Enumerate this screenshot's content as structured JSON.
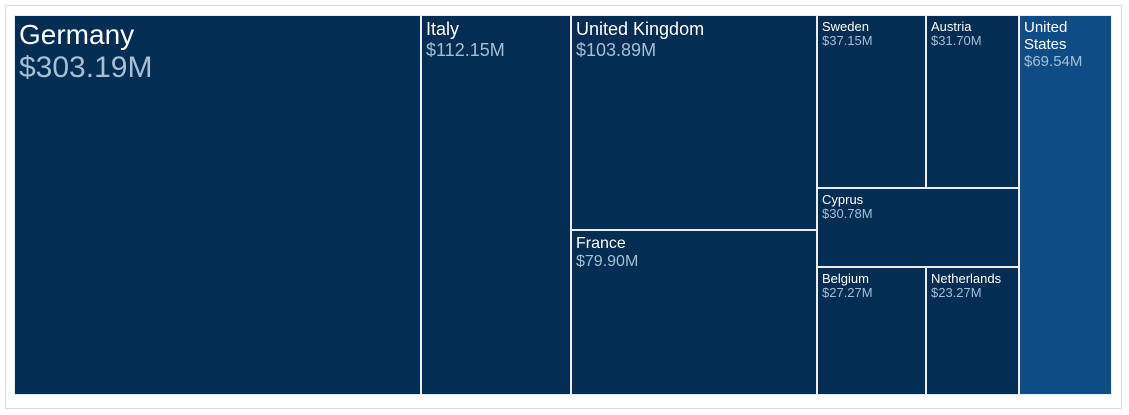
{
  "chart_data": {
    "type": "treemap",
    "title": "",
    "colors": {
      "default": "#032d52",
      "highlight": "#0f4c85",
      "border": "#e8eef4",
      "value_text": "#a6bfd6",
      "label_text": "#ffffff"
    },
    "items": [
      {
        "name": "Germany",
        "value": 303.19,
        "value_label": "$303.19M",
        "color": "#032d52"
      },
      {
        "name": "Italy",
        "value": 112.15,
        "value_label": "$112.15M",
        "color": "#032d52"
      },
      {
        "name": "United Kingdom",
        "value": 103.89,
        "value_label": "$103.89M",
        "color": "#032d52"
      },
      {
        "name": "France",
        "value": 79.9,
        "value_label": "$79.90M",
        "color": "#032d52"
      },
      {
        "name": "Sweden",
        "value": 37.15,
        "value_label": "$37.15M",
        "color": "#032d52"
      },
      {
        "name": "Austria",
        "value": 31.7,
        "value_label": "$31.70M",
        "color": "#032d52"
      },
      {
        "name": "Cyprus",
        "value": 30.78,
        "value_label": "$30.78M",
        "color": "#032d52"
      },
      {
        "name": "Belgium",
        "value": 27.27,
        "value_label": "$27.27M",
        "color": "#032d52"
      },
      {
        "name": "Netherlands",
        "value": 23.27,
        "value_label": "$23.27M",
        "color": "#032d52"
      },
      {
        "name": "United States",
        "value": 69.54,
        "value_label": "$69.54M",
        "color": "#0f4c85"
      }
    ]
  }
}
